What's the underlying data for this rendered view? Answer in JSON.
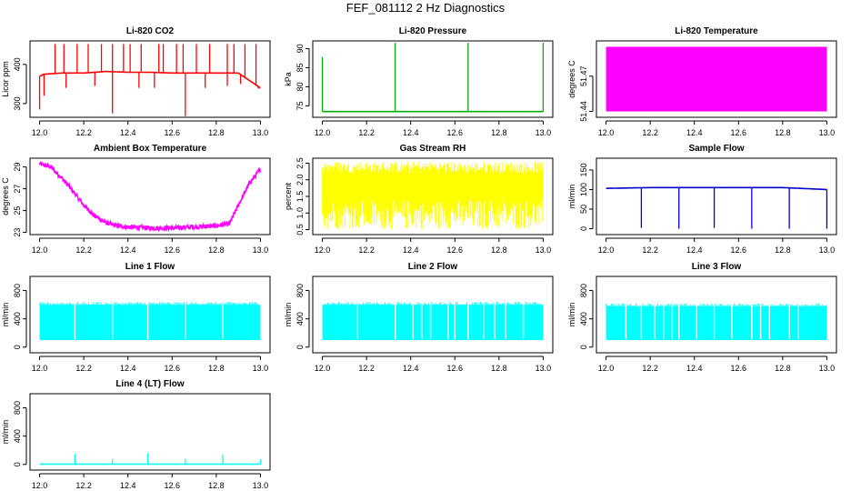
{
  "figure_title": "FEF_081112  2 Hz Diagnostics",
  "chart_data": [
    {
      "type": "line",
      "title": "Li-820 CO2",
      "xlabel": "",
      "ylabel": "Licor ppm",
      "color": "#ff0000",
      "xlim": [
        12.0,
        13.0
      ],
      "ylim": [
        265,
        460
      ],
      "xticks": [
        "12.0",
        "12.2",
        "12.4",
        "12.6",
        "12.8",
        "13.0"
      ],
      "yticks": [
        300,
        400
      ],
      "series": [
        {
          "x": [
            12.0,
            12.02,
            12.1,
            12.2,
            12.3,
            12.4,
            12.5,
            12.6,
            12.7,
            12.8,
            12.9,
            13.0
          ],
          "values": [
            370,
            375,
            378,
            378,
            382,
            380,
            380,
            378,
            378,
            378,
            378,
            340
          ]
        }
      ],
      "spikes_up_x": [
        12.07,
        12.11,
        12.17,
        12.22,
        12.28,
        12.33,
        12.38,
        12.41,
        12.46,
        12.54,
        12.56,
        12.62,
        12.65,
        12.71,
        12.77,
        12.85,
        12.88,
        12.93,
        12.98
      ],
      "spikes_up_value": 452,
      "spikes_down_x": [
        12.0,
        12.02,
        12.12,
        12.25,
        12.33,
        12.45,
        12.52,
        12.66,
        12.75,
        12.85,
        12.91,
        12.99
      ],
      "spikes_down_value": [
        285,
        320,
        340,
        345,
        275,
        340,
        340,
        268,
        340,
        345,
        350,
        338
      ]
    },
    {
      "type": "line",
      "title": "Li-820 Pressure",
      "xlabel": "",
      "ylabel": "kPa",
      "color": "#00b000",
      "xlim": [
        12.0,
        13.0
      ],
      "ylim": [
        72,
        92
      ],
      "xticks": [
        "12.0",
        "12.2",
        "12.4",
        "12.6",
        "12.8",
        "13.0"
      ],
      "yticks": [
        75,
        80,
        85,
        90
      ],
      "series": [
        {
          "x": [
            12.0,
            12.2,
            12.4,
            12.6,
            12.8,
            13.0
          ],
          "values": [
            73.5,
            73.5,
            73.5,
            73.5,
            73.5,
            73.5
          ]
        }
      ],
      "spikes_up_x": [
        12.0,
        12.33,
        12.66,
        13.0
      ],
      "spikes_up_value": [
        87.8,
        91.5,
        91.5,
        91.5
      ]
    },
    {
      "type": "area",
      "title": "Li-820 Temperature",
      "xlabel": "",
      "ylabel": "degrees C",
      "color": "#ff00ff",
      "xlim": [
        12.0,
        13.0
      ],
      "ylim": [
        51.435,
        51.5
      ],
      "xticks": [
        "12.0",
        "12.2",
        "12.4",
        "12.6",
        "12.8",
        "13.0"
      ],
      "yticks": [
        "51.44",
        "51.47"
      ],
      "series": [
        {
          "x": [
            12.0,
            13.0
          ],
          "low": [
            51.44,
            51.44
          ],
          "high": [
            51.495,
            51.495
          ]
        }
      ]
    },
    {
      "type": "line",
      "title": "Ambient Box Temperature",
      "xlabel": "",
      "ylabel": "degrees C",
      "color": "#ff00ff",
      "xlim": [
        12.0,
        13.0
      ],
      "ylim": [
        22.8,
        29.8
      ],
      "xticks": [
        "12.0",
        "12.2",
        "12.4",
        "12.6",
        "12.8",
        "13.0"
      ],
      "yticks": [
        23,
        25,
        27,
        29
      ],
      "series": [
        {
          "x": [
            12.0,
            12.05,
            12.1,
            12.15,
            12.2,
            12.25,
            12.3,
            12.35,
            12.4,
            12.5,
            12.6,
            12.7,
            12.8,
            12.86,
            12.9,
            12.95,
            13.0
          ],
          "values": [
            29.3,
            29.0,
            28.0,
            26.8,
            25.5,
            24.5,
            23.9,
            23.6,
            23.5,
            23.4,
            23.4,
            23.5,
            23.6,
            23.8,
            25.5,
            27.5,
            28.8
          ]
        }
      ],
      "noise": 0.45
    },
    {
      "type": "area",
      "title": "Gas Stream RH",
      "xlabel": "",
      "ylabel": "percent",
      "color": "#ffff00",
      "xlim": [
        12.0,
        13.0
      ],
      "ylim": [
        0.35,
        2.65
      ],
      "xticks": [
        "12.0",
        "12.2",
        "12.4",
        "12.6",
        "12.8",
        "13.0"
      ],
      "yticks": [
        "0.5",
        "1.0",
        "1.5",
        "2.0",
        "2.5"
      ],
      "series": [
        {
          "x": [
            12.0,
            13.0
          ],
          "low": [
            0.5,
            0.5
          ],
          "high": [
            2.2,
            2.2
          ]
        }
      ]
    },
    {
      "type": "line",
      "title": "Sample Flow",
      "xlabel": "",
      "ylabel": "ml/min",
      "color": "#0000cc",
      "xlim": [
        12.0,
        13.0
      ],
      "ylim": [
        -15,
        180
      ],
      "xticks": [
        "12.0",
        "12.2",
        "12.4",
        "12.6",
        "12.8",
        "13.0"
      ],
      "yticks": [
        0,
        50,
        100,
        150
      ],
      "series": [
        {
          "x": [
            12.0,
            12.2,
            12.4,
            12.6,
            12.8,
            13.0
          ],
          "values": [
            103,
            105,
            105,
            105,
            105,
            100
          ]
        }
      ],
      "spikes_down_x": [
        12.16,
        12.33,
        12.49,
        12.66,
        12.83,
        13.0
      ],
      "spikes_down_value": [
        2,
        0,
        2,
        0,
        0,
        0
      ]
    },
    {
      "type": "area",
      "title": "Line 1 Flow",
      "xlabel": "",
      "ylabel": "ml/min",
      "color": "#00ffff",
      "xlim": [
        12.0,
        13.0
      ],
      "ylim": [
        -80,
        1000
      ],
      "xticks": [
        "12.0",
        "12.2",
        "12.4",
        "12.6",
        "12.8",
        "13.0"
      ],
      "yticks": [
        0,
        400,
        800
      ],
      "series": [
        {
          "x": [
            12.0,
            13.0
          ],
          "low": [
            100,
            100
          ],
          "high": [
            600,
            600
          ]
        }
      ],
      "gaps_x": [
        12.16,
        12.33,
        12.49,
        12.66,
        12.83
      ]
    },
    {
      "type": "area",
      "title": "Line 2 Flow",
      "xlabel": "",
      "ylabel": "ml/min",
      "color": "#00ffff",
      "xlim": [
        12.0,
        13.0
      ],
      "ylim": [
        -80,
        1000
      ],
      "xticks": [
        "12.0",
        "12.2",
        "12.4",
        "12.6",
        "12.8",
        "13.0"
      ],
      "yticks": [
        0,
        400,
        800
      ],
      "series": [
        {
          "x": [
            12.0,
            13.0
          ],
          "low": [
            100,
            100
          ],
          "high": [
            600,
            600
          ]
        }
      ],
      "gaps_x": [
        12.16,
        12.33,
        12.41,
        12.45,
        12.49,
        12.57,
        12.6,
        12.66,
        12.73,
        12.78,
        12.83,
        12.91
      ]
    },
    {
      "type": "area",
      "title": "Line 3 Flow",
      "xlabel": "",
      "ylabel": "ml/min",
      "color": "#00ffff",
      "xlim": [
        12.0,
        13.0
      ],
      "ylim": [
        -80,
        1000
      ],
      "xticks": [
        "12.0",
        "12.2",
        "12.4",
        "12.6",
        "12.8",
        "13.0"
      ],
      "yticks": [
        0,
        400,
        800
      ],
      "series": [
        {
          "x": [
            12.0,
            13.0
          ],
          "low": [
            100,
            100
          ],
          "high": [
            580,
            580
          ]
        }
      ],
      "gaps_x": [
        12.09,
        12.16,
        12.22,
        12.26,
        12.3,
        12.33,
        12.41,
        12.49,
        12.57,
        12.66,
        12.7,
        12.74,
        12.83,
        12.87
      ]
    },
    {
      "type": "line",
      "title": "Line 4 (LT) Flow",
      "xlabel": "",
      "ylabel": "ml/min",
      "color": "#00ffff",
      "xlim": [
        12.0,
        13.0
      ],
      "ylim": [
        -80,
        1000
      ],
      "xticks": [
        "12.0",
        "12.2",
        "12.4",
        "12.6",
        "12.8",
        "13.0"
      ],
      "yticks": [
        0,
        400,
        800
      ],
      "series": [
        {
          "x": [
            12.0,
            13.0
          ],
          "values": [
            5,
            5
          ]
        }
      ],
      "spikes_up_x": [
        12.16,
        12.33,
        12.49,
        12.66,
        12.83,
        13.0
      ],
      "spikes_up_value": [
        150,
        80,
        160,
        80,
        140,
        70
      ]
    }
  ]
}
